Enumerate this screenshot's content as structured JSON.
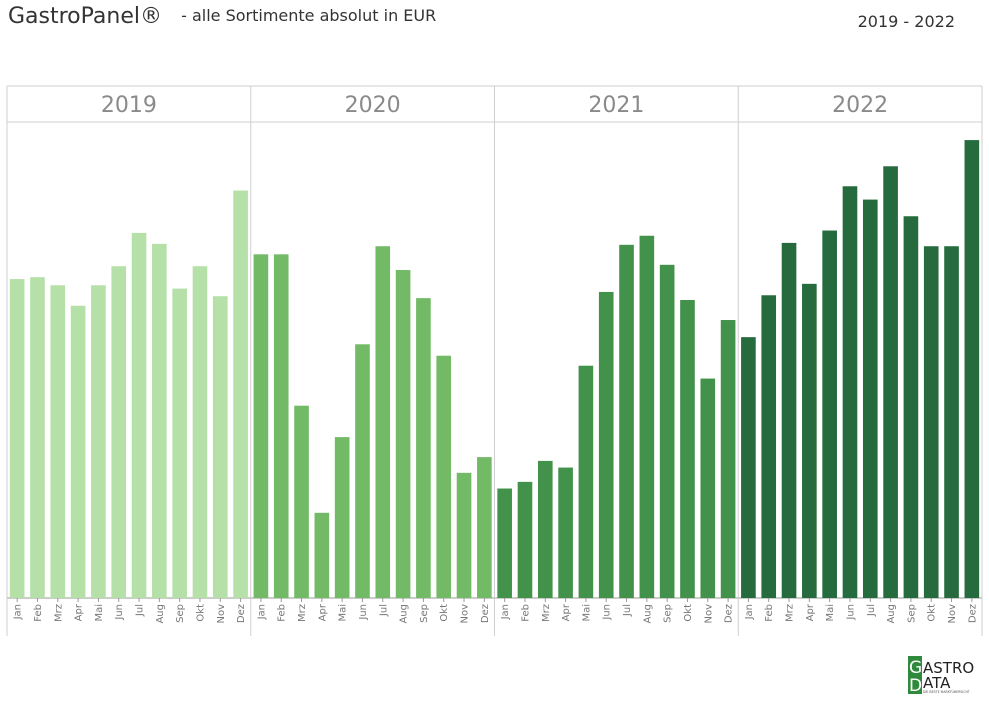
{
  "header": {
    "brand": "GastroPanel®",
    "subtitle": "- alle Sortimente absolut in EUR",
    "year_range": "2019 - 2022"
  },
  "logo": {
    "line1": "ASTRO",
    "line2": "ATA",
    "tagline": "DIE BESTE MARKTÜBERSICHT"
  },
  "chart_data": {
    "type": "bar",
    "title": "",
    "xlabel": "",
    "ylabel": "",
    "ylim": [
      0,
      100
    ],
    "grid": false,
    "months": [
      "Jan",
      "Feb",
      "Mrz",
      "Apr",
      "Mai",
      "Jun",
      "Jul",
      "Aug",
      "Sep",
      "Okt",
      "Nov",
      "Dez"
    ],
    "panels": [
      {
        "year": "2019",
        "color": "#b5e0a8",
        "values": [
          67.0,
          67.4,
          65.7,
          61.4,
          65.7,
          69.7,
          76.7,
          74.4,
          65.0,
          69.7,
          63.4,
          85.6
        ]
      },
      {
        "year": "2020",
        "color": "#72ba65",
        "values": [
          72.2,
          72.2,
          40.4,
          17.9,
          33.8,
          53.3,
          73.9,
          68.9,
          63.0,
          50.9,
          26.3,
          29.6
        ]
      },
      {
        "year": "2021",
        "color": "#42924b",
        "values": [
          23.0,
          24.4,
          28.8,
          27.4,
          48.8,
          64.3,
          74.2,
          76.1,
          70.0,
          62.6,
          46.1,
          58.4
        ]
      },
      {
        "year": "2022",
        "color": "#256b3d",
        "values": [
          54.8,
          63.6,
          74.6,
          66.0,
          77.2,
          86.5,
          83.7,
          90.7,
          80.2,
          73.9,
          73.9,
          96.2
        ]
      }
    ]
  }
}
